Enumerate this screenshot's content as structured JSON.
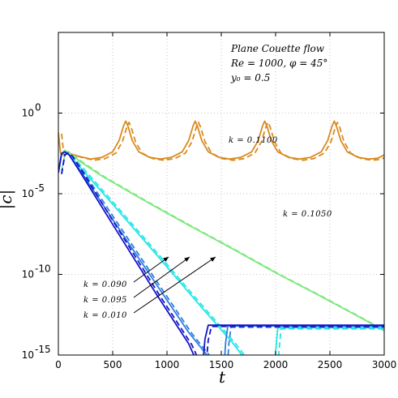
{
  "chart_data": {
    "type": "line",
    "title": "",
    "xlabel": "t",
    "ylabel": "|c|",
    "xlim": [
      0,
      3000
    ],
    "ylim_log10": [
      -15,
      5
    ],
    "yscale": "log",
    "grid": true,
    "x_ticks": [
      0,
      500,
      1000,
      1500,
      2000,
      2500,
      3000
    ],
    "x_tick_labels": [
      "0",
      "500",
      "1000",
      "1500",
      "2000",
      "2500",
      "3000"
    ],
    "y_ticks_log10": [
      0,
      -5,
      -10,
      -15
    ],
    "y_tick_labels": [
      {
        "base": "10",
        "exp": "0"
      },
      {
        "base": "10",
        "exp": "-5"
      },
      {
        "base": "10",
        "exp": "-10"
      },
      {
        "base": "10",
        "exp": "-15"
      }
    ],
    "annotation_box": {
      "line1": "Plane Couette flow",
      "line2": "Re = 1000,  φ = 45°",
      "line3": "y₀ = 0.5"
    },
    "series_labels": {
      "k_01100": "k = 0.1100",
      "k_01050": "k = 0.1050",
      "k_0090": "k = 0.090",
      "k_0095": "k = 0.095",
      "k_0010": "k = 0.010"
    },
    "series": [
      {
        "key": "k_01100",
        "color": "#d98a1e",
        "points_log10": [
          [
            0,
            -1.2
          ],
          [
            20,
            -2.5
          ],
          [
            50,
            -2.6
          ],
          [
            100,
            -2.5
          ],
          [
            200,
            -2.7
          ],
          [
            300,
            -2.85
          ],
          [
            400,
            -2.75
          ],
          [
            500,
            -2.4
          ],
          [
            560,
            -1.7
          ],
          [
            600,
            -0.8
          ],
          [
            620,
            -0.5
          ],
          [
            640,
            -0.8
          ],
          [
            680,
            -1.7
          ],
          [
            740,
            -2.4
          ],
          [
            840,
            -2.75
          ],
          [
            940,
            -2.85
          ],
          [
            1040,
            -2.75
          ],
          [
            1140,
            -2.4
          ],
          [
            1200,
            -1.7
          ],
          [
            1240,
            -0.8
          ],
          [
            1260,
            -0.5
          ],
          [
            1280,
            -0.8
          ],
          [
            1320,
            -1.7
          ],
          [
            1380,
            -2.4
          ],
          [
            1480,
            -2.75
          ],
          [
            1580,
            -2.85
          ],
          [
            1680,
            -2.75
          ],
          [
            1780,
            -2.4
          ],
          [
            1840,
            -1.7
          ],
          [
            1880,
            -0.8
          ],
          [
            1900,
            -0.5
          ],
          [
            1920,
            -0.8
          ],
          [
            1960,
            -1.7
          ],
          [
            2020,
            -2.4
          ],
          [
            2120,
            -2.75
          ],
          [
            2220,
            -2.85
          ],
          [
            2320,
            -2.75
          ],
          [
            2420,
            -2.4
          ],
          [
            2480,
            -1.7
          ],
          [
            2520,
            -0.8
          ],
          [
            2540,
            -0.5
          ],
          [
            2560,
            -0.8
          ],
          [
            2600,
            -1.7
          ],
          [
            2660,
            -2.4
          ],
          [
            2760,
            -2.75
          ],
          [
            2860,
            -2.85
          ],
          [
            2940,
            -2.8
          ],
          [
            3000,
            -2.6
          ]
        ]
      },
      {
        "key": "k_01050",
        "color": "#7de87d",
        "points_log10": [
          [
            0,
            -3.5
          ],
          [
            30,
            -2.5
          ],
          [
            60,
            -2.3
          ],
          [
            100,
            -2.5
          ],
          [
            200,
            -3.0
          ],
          [
            400,
            -3.9
          ],
          [
            800,
            -5.45
          ],
          [
            1200,
            -6.95
          ],
          [
            1600,
            -8.4
          ],
          [
            2000,
            -9.9
          ],
          [
            2400,
            -11.3
          ],
          [
            2800,
            -12.75
          ],
          [
            3000,
            -13.5
          ]
        ]
      },
      {
        "key": "k_0010",
        "color": "#22e6e6",
        "points_log10": [
          [
            0,
            -3.7
          ],
          [
            30,
            -2.5
          ],
          [
            60,
            -2.4
          ],
          [
            100,
            -2.6
          ],
          [
            200,
            -3.35
          ],
          [
            500,
            -5.65
          ],
          [
            900,
            -8.75
          ],
          [
            1300,
            -11.9
          ],
          [
            1600,
            -14.2
          ],
          [
            1700,
            -15.1
          ],
          [
            1830,
            -15.8
          ],
          [
            1900,
            -16.1
          ],
          [
            1980,
            -16.5
          ],
          [
            2000,
            -14.8
          ],
          [
            2020,
            -13.3
          ],
          [
            2100,
            -13.3
          ],
          [
            3000,
            -13.3
          ]
        ]
      },
      {
        "key": "k_0095",
        "color": "#2d7fe0",
        "points_log10": [
          [
            0,
            -3.7
          ],
          [
            30,
            -2.5
          ],
          [
            60,
            -2.4
          ],
          [
            100,
            -2.6
          ],
          [
            200,
            -3.55
          ],
          [
            500,
            -6.6
          ],
          [
            900,
            -10.6
          ],
          [
            1200,
            -13.6
          ],
          [
            1380,
            -15.1
          ],
          [
            1470,
            -15.7
          ],
          [
            1520,
            -16.3
          ],
          [
            1540,
            -14.2
          ],
          [
            1560,
            -13.2
          ],
          [
            1800,
            -13.2
          ],
          [
            3000,
            -13.2
          ]
        ]
      },
      {
        "key": "k_0090",
        "color": "#1414c8",
        "points_log10": [
          [
            0,
            -3.7
          ],
          [
            30,
            -2.5
          ],
          [
            60,
            -2.4
          ],
          [
            100,
            -2.6
          ],
          [
            200,
            -3.65
          ],
          [
            500,
            -6.9
          ],
          [
            900,
            -11.2
          ],
          [
            1200,
            -14.3
          ],
          [
            1280,
            -15.5
          ],
          [
            1320,
            -16.3
          ],
          [
            1350,
            -14.0
          ],
          [
            1380,
            -13.15
          ],
          [
            2000,
            -13.15
          ],
          [
            3000,
            -13.15
          ]
        ]
      }
    ]
  }
}
